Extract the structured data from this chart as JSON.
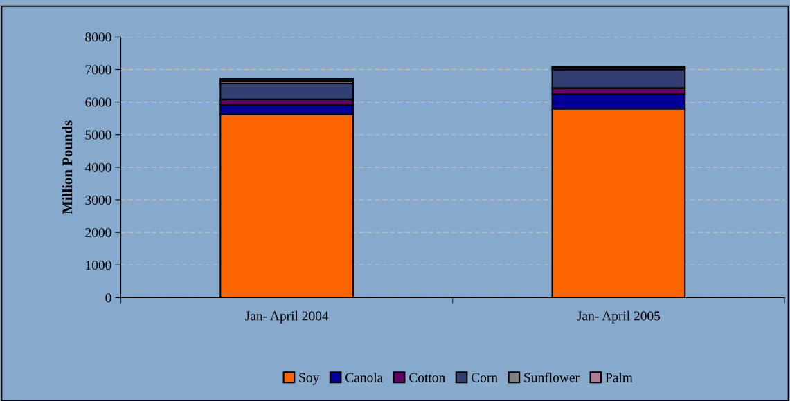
{
  "chart_data": {
    "type": "bar",
    "stacked": true,
    "ylabel": "Million Pounds",
    "categories": [
      "Jan- April 2004",
      "Jan- April 2005"
    ],
    "series": [
      {
        "name": "Soy",
        "color": "#ff6600",
        "values": [
          5620,
          5790
        ]
      },
      {
        "name": "Canola",
        "color": "#000099",
        "values": [
          290,
          450
        ]
      },
      {
        "name": "Cotton",
        "color": "#660066",
        "values": [
          170,
          190
        ]
      },
      {
        "name": "Corn",
        "color": "#333f73",
        "values": [
          490,
          570
        ]
      },
      {
        "name": "Sunflower",
        "color": "#808080",
        "values": [
          80,
          50
        ]
      },
      {
        "name": "Palm",
        "color": "#b07a9a",
        "values": [
          60,
          30
        ]
      }
    ],
    "ylim": [
      0,
      8000
    ],
    "yticks": [
      0,
      1000,
      2000,
      3000,
      4000,
      5000,
      6000,
      7000,
      8000
    ],
    "grid": "y",
    "legend": "bottom"
  }
}
